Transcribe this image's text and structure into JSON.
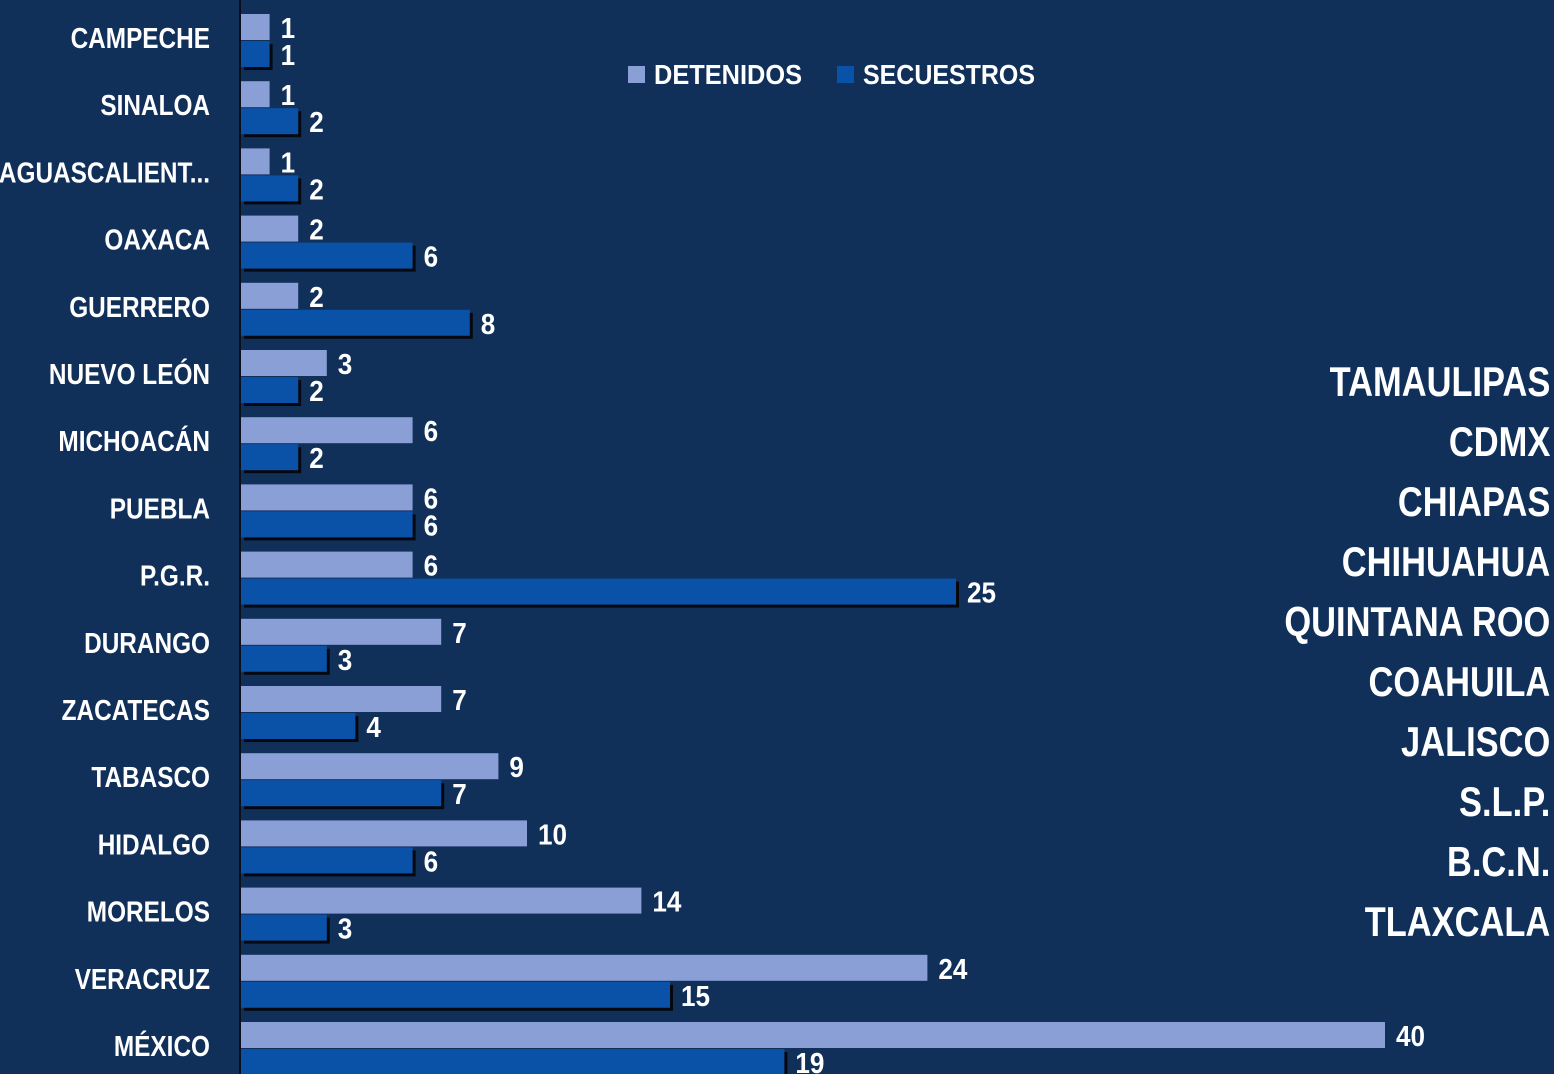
{
  "chart_data": {
    "type": "bar",
    "orientation": "horizontal",
    "categories": [
      "CAMPECHE",
      "SINALOA",
      "AGUASCALIENT...",
      "OAXACA",
      "GUERRERO",
      "NUEVO LEÓN",
      "MICHOACÁN",
      "PUEBLA",
      "P.G.R.",
      "DURANGO",
      "ZACATECAS",
      "TABASCO",
      "HIDALGO",
      "MORELOS",
      "VERACRUZ",
      "MÉXICO"
    ],
    "series": [
      {
        "name": "DETENIDOS",
        "color": "#8a9fd6",
        "values": [
          1,
          1,
          1,
          2,
          2,
          3,
          6,
          6,
          6,
          7,
          7,
          9,
          10,
          14,
          24,
          40
        ]
      },
      {
        "name": "SECUESTROS",
        "color": "#0a52a8",
        "values": [
          1,
          2,
          2,
          6,
          8,
          2,
          2,
          6,
          25,
          3,
          4,
          7,
          6,
          3,
          15,
          19
        ]
      }
    ],
    "xlim": [
      0,
      40
    ],
    "legend_position": "top-center",
    "grid": false
  },
  "side_list": {
    "items": [
      "TAMAULIPAS",
      "CDMX",
      "CHIAPAS",
      "CHIHUAHUA",
      "QUINTANA ROO",
      "COAHUILA",
      "JALISCO",
      "S.L.P.",
      "B.C.N.",
      "TLAXCALA"
    ]
  },
  "colors": {
    "background": "#10305a",
    "axis": "#0a0f1e",
    "shadow": "#05080f"
  }
}
